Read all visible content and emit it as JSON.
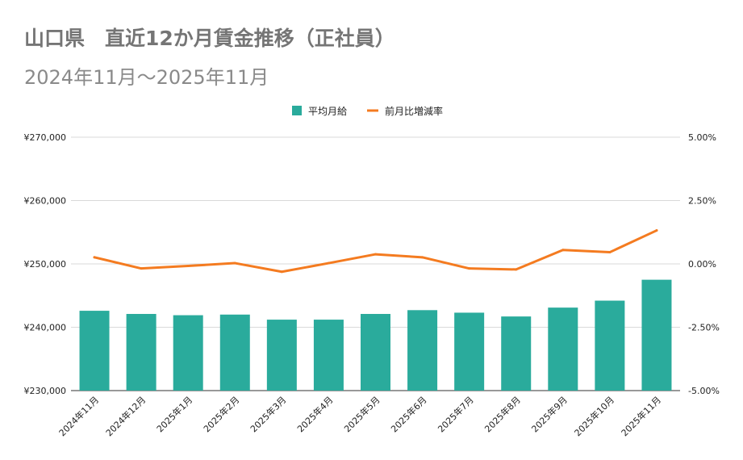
{
  "title": "山口県　直近12か月賃金推移（正社員）",
  "subtitle": "2024年11月～2025年11月",
  "colors": {
    "bar": "#2aab9c",
    "line": "#f47b20",
    "grid": "#d9d9d9",
    "text": "#222222"
  },
  "chart_data": {
    "type": "bar",
    "title": "山口県　直近12か月賃金推移（正社員）",
    "subtitle": "2024年11月～2025年11月",
    "categories": [
      "2024年11月",
      "2024年12月",
      "2025年1月",
      "2025年2月",
      "2025年3月",
      "2025年4月",
      "2025年5月",
      "2025年6月",
      "2025年7月",
      "2025年8月",
      "2025年9月",
      "2025年10月",
      "2025年11月"
    ],
    "series": [
      {
        "name": "平均月給",
        "type": "bar",
        "axis": "left",
        "values": [
          242600,
          242100,
          241900,
          242000,
          241200,
          241200,
          242100,
          242700,
          242300,
          241700,
          243100,
          244200,
          247500
        ]
      },
      {
        "name": "前月比増減率",
        "type": "line",
        "axis": "right",
        "values": [
          0.26,
          -0.18,
          -0.08,
          0.03,
          -0.31,
          0.03,
          0.38,
          0.26,
          -0.18,
          -0.22,
          0.55,
          0.46,
          1.32
        ]
      }
    ],
    "y_left": {
      "min": 230000,
      "max": 270000,
      "ticks": [
        "¥230,000",
        "¥240,000",
        "¥250,000",
        "¥260,000",
        "¥270,000"
      ],
      "tick_values": [
        230000,
        240000,
        250000,
        260000,
        270000
      ]
    },
    "y_right": {
      "min": -5,
      "max": 5,
      "ticks": [
        "-5.00%",
        "-2.50%",
        "0.00%",
        "2.50%",
        "5.00%"
      ],
      "tick_values": [
        -5,
        -2.5,
        0,
        2.5,
        5
      ]
    },
    "legend_position": "top-center",
    "grid": true
  }
}
